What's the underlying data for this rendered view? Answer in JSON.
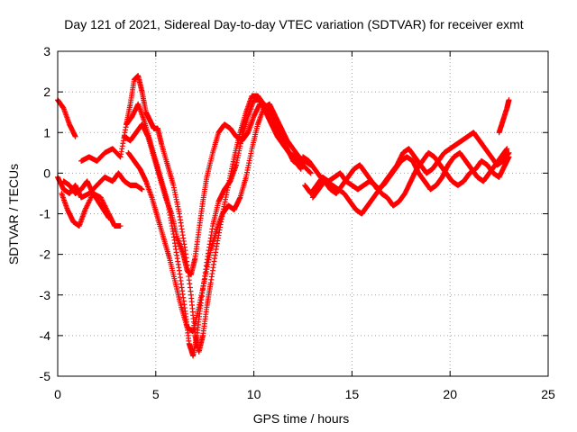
{
  "chart_data": {
    "type": "scatter",
    "title": "Day 121 of 2021, Sidereal Day-to-day VTEC variation (SDTVAR) for receiver exmt",
    "xlabel": "GPS time / hours",
    "ylabel": "SDTVAR / TECUs",
    "xlim": [
      0,
      25
    ],
    "ylim": [
      -5,
      3
    ],
    "xticks": [
      0,
      5,
      10,
      15,
      20,
      25
    ],
    "yticks": [
      -5,
      -4,
      -3,
      -2,
      -1,
      0,
      1,
      2,
      3
    ],
    "grid": true,
    "marker": "plus",
    "color": "#ff0000",
    "series": [
      {
        "x": [
          0.0,
          0.3,
          0.6,
          0.9
        ],
        "y": [
          1.8,
          1.6,
          1.2,
          0.9
        ]
      },
      {
        "x": [
          0.0,
          0.3,
          0.6,
          0.9,
          1.2,
          1.6,
          2.0,
          2.4,
          2.8,
          3.1,
          3.4,
          3.7,
          4.0,
          4.3
        ],
        "y": [
          -0.1,
          -0.4,
          -0.5,
          -0.3,
          -0.6,
          -0.5,
          -0.3,
          -0.1,
          -0.2,
          0.0,
          -0.2,
          -0.3,
          -0.3,
          -0.4
        ]
      },
      {
        "x": [
          0.2,
          0.5,
          0.8,
          1.1,
          1.4,
          1.8,
          2.2,
          2.6,
          2.9,
          3.2
        ],
        "y": [
          -0.5,
          -0.9,
          -1.2,
          -1.3,
          -0.9,
          -0.5,
          -0.6,
          -1.0,
          -1.3,
          -1.3
        ]
      },
      {
        "x": [
          0.3,
          0.6,
          0.9,
          1.2,
          1.5,
          1.8,
          2.2,
          2.6
        ],
        "y": [
          -0.2,
          -0.3,
          -0.5,
          -0.4,
          -0.2,
          -0.5,
          -0.8,
          -1.1
        ]
      },
      {
        "x": [
          1.2,
          1.6,
          2.0,
          2.4,
          2.8,
          3.2,
          3.5,
          3.7,
          3.9,
          4.1,
          4.3,
          4.5,
          4.7,
          4.9,
          5.1,
          5.3,
          5.6,
          5.9,
          6.2,
          6.5,
          6.8,
          7.0,
          7.2,
          7.4,
          7.6,
          7.8,
          8.1,
          8.4,
          8.7,
          9.0,
          9.3,
          9.6,
          9.9,
          10.2,
          10.5,
          10.8,
          11.1,
          11.4,
          11.7,
          12.0,
          12.3,
          12.6
        ],
        "y": [
          0.3,
          0.4,
          0.3,
          0.5,
          0.6,
          0.4,
          1.2,
          1.7,
          2.3,
          2.4,
          2.0,
          1.5,
          1.3,
          1.1,
          1.1,
          0.7,
          0.2,
          -0.3,
          -1.0,
          -1.9,
          -3.0,
          -4.0,
          -4.4,
          -4.0,
          -3.3,
          -2.7,
          -1.8,
          -1.0,
          -0.3,
          0.4,
          1.0,
          1.5,
          1.9,
          1.9,
          1.7,
          1.6,
          1.3,
          0.9,
          0.6,
          0.3,
          0.2,
          0.3
        ]
      },
      {
        "x": [
          3.5,
          3.8,
          4.1,
          4.4,
          4.7,
          5.0,
          5.3,
          5.6,
          5.9,
          6.2,
          6.5,
          6.7,
          6.9,
          7.1,
          7.3,
          7.6,
          7.9,
          8.2,
          8.5,
          8.8,
          9.1,
          9.4,
          9.7,
          10.0,
          10.3,
          10.6,
          10.9,
          11.2,
          11.5,
          11.8,
          12.1,
          12.5,
          12.9
        ],
        "y": [
          1.2,
          1.4,
          1.7,
          1.3,
          0.8,
          0.3,
          -0.2,
          -0.7,
          -1.5,
          -2.4,
          -3.4,
          -4.2,
          -4.5,
          -4.0,
          -3.2,
          -2.2,
          -1.3,
          -0.7,
          -0.4,
          -0.2,
          0.2,
          0.9,
          1.4,
          1.8,
          1.8,
          1.5,
          1.2,
          0.9,
          0.7,
          0.5,
          0.4,
          0.2,
          0.0
        ]
      },
      {
        "x": [
          3.4,
          3.7,
          4.0,
          4.3,
          4.6,
          4.9,
          5.2,
          5.5,
          5.8,
          6.1,
          6.4,
          6.6,
          6.8,
          7.0,
          7.2,
          7.4,
          7.6,
          7.9,
          8.2,
          8.5,
          8.8,
          9.1,
          9.4,
          9.7,
          10.0,
          10.3,
          10.6,
          10.9,
          11.2,
          11.5,
          11.8,
          12.1,
          12.4
        ],
        "y": [
          0.9,
          0.8,
          1.0,
          1.2,
          0.9,
          0.4,
          -0.1,
          -0.6,
          -1.0,
          -1.6,
          -2.0,
          -2.4,
          -2.5,
          -2.1,
          -1.4,
          -0.7,
          -0.1,
          0.5,
          1.0,
          1.2,
          1.1,
          0.9,
          0.8,
          1.0,
          1.4,
          1.7,
          1.6,
          1.3,
          1.0,
          0.7,
          0.5,
          0.3,
          0.1
        ]
      },
      {
        "x": [
          3.6,
          3.9,
          4.2,
          4.5,
          4.8,
          5.1,
          5.4,
          5.7,
          6.0,
          6.3,
          6.6,
          6.9,
          7.2,
          7.5,
          7.8,
          8.1,
          8.4,
          8.7,
          9.0,
          9.3,
          9.6,
          9.9,
          10.2,
          10.5,
          10.8,
          11.1,
          11.4,
          11.7,
          12.0,
          12.3,
          12.6,
          12.9
        ],
        "y": [
          0.5,
          0.3,
          0.1,
          -0.2,
          -0.6,
          -1.1,
          -1.6,
          -2.1,
          -2.7,
          -3.3,
          -3.8,
          -3.9,
          -3.3,
          -2.6,
          -1.9,
          -1.4,
          -1.0,
          -0.8,
          -0.9,
          -0.6,
          -0.1,
          0.6,
          1.2,
          1.6,
          1.7,
          1.4,
          1.1,
          0.8,
          0.6,
          0.4,
          0.3,
          0.2
        ]
      },
      {
        "x": [
          12.5,
          12.8,
          13.1,
          13.4,
          13.7,
          14.0,
          14.3,
          14.6,
          14.9,
          15.2,
          15.5,
          15.8,
          16.1,
          16.4,
          16.7,
          17.0,
          17.3,
          17.6,
          17.9,
          18.2,
          18.5,
          18.8,
          19.1,
          19.4,
          19.7,
          20.0,
          20.3,
          20.6,
          20.9,
          21.2,
          21.5,
          21.8,
          22.1,
          22.4,
          22.7,
          23.0
        ],
        "y": [
          0.4,
          0.3,
          0.1,
          -0.1,
          -0.2,
          -0.3,
          -0.4,
          -0.5,
          -0.7,
          -0.9,
          -1.0,
          -0.8,
          -0.6,
          -0.4,
          -0.2,
          0.0,
          0.2,
          0.5,
          0.6,
          0.4,
          0.2,
          0.0,
          0.1,
          0.3,
          0.5,
          0.6,
          0.7,
          0.8,
          0.9,
          1.0,
          0.8,
          0.6,
          0.4,
          0.2,
          0.3,
          0.5
        ]
      },
      {
        "x": [
          12.6,
          12.9,
          13.2,
          13.5,
          13.8,
          14.1,
          14.4,
          14.7,
          15.0,
          15.3,
          15.6,
          15.9,
          16.2,
          16.5,
          16.8,
          17.1,
          17.4,
          17.7,
          18.0,
          18.3,
          18.6,
          18.9,
          19.2,
          19.5,
          19.8,
          20.1,
          20.4,
          20.7,
          21.0,
          21.3,
          21.6,
          21.9,
          22.2,
          22.5,
          22.8,
          23.0
        ],
        "y": [
          -0.3,
          -0.5,
          -0.3,
          -0.1,
          -0.2,
          -0.1,
          0.0,
          -0.2,
          -0.3,
          -0.4,
          -0.3,
          -0.2,
          -0.3,
          -0.5,
          -0.6,
          -0.8,
          -0.7,
          -0.5,
          -0.2,
          0.1,
          0.3,
          0.5,
          0.4,
          0.2,
          0.0,
          -0.2,
          -0.3,
          -0.2,
          0.0,
          0.1,
          0.3,
          0.2,
          0.0,
          -0.1,
          0.2,
          0.4
        ]
      },
      {
        "x": [
          13.0,
          13.3,
          13.6,
          13.9,
          14.2,
          14.5,
          14.8,
          15.1,
          15.4,
          15.7,
          16.0,
          16.3,
          16.6,
          16.9,
          17.2,
          17.5,
          17.8,
          18.1,
          18.4,
          18.7,
          19.0,
          19.3,
          19.6,
          19.9,
          20.2,
          20.5,
          20.8,
          21.1,
          21.4,
          21.7,
          22.0,
          22.3,
          22.6,
          22.9
        ],
        "y": [
          -0.6,
          -0.4,
          -0.2,
          -0.4,
          -0.5,
          -0.3,
          -0.1,
          0.1,
          0.2,
          0.0,
          -0.2,
          -0.4,
          -0.3,
          -0.1,
          0.1,
          0.3,
          0.4,
          0.3,
          0.0,
          -0.2,
          -0.4,
          -0.3,
          -0.1,
          0.2,
          0.4,
          0.5,
          0.3,
          0.1,
          -0.1,
          -0.2,
          0.0,
          0.2,
          0.4,
          0.6
        ]
      },
      {
        "x": [
          22.5,
          22.7,
          22.9,
          23.0
        ],
        "y": [
          1.0,
          1.3,
          1.6,
          1.8
        ]
      }
    ]
  }
}
